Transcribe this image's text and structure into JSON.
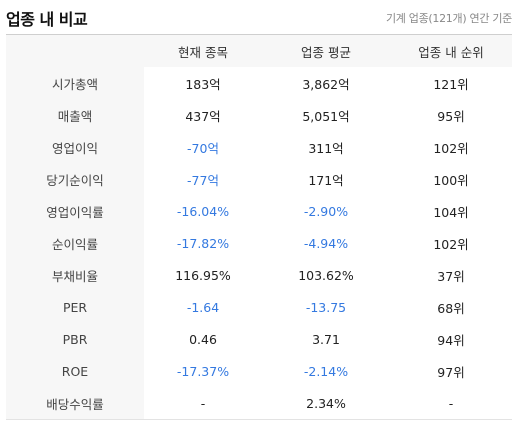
{
  "header": {
    "title": "업종 내 비교",
    "subtitle": "기계 업종(121개) 연간 기준"
  },
  "table": {
    "columns": [
      "",
      "현재 종목",
      "업종 평균",
      "업종 내 순위"
    ],
    "rows": [
      {
        "label": "시가총액",
        "current": "183억",
        "average": "3,862억",
        "rank": "121위",
        "current_neg": false,
        "average_neg": false
      },
      {
        "label": "매출액",
        "current": "437억",
        "average": "5,051억",
        "rank": "95위",
        "current_neg": false,
        "average_neg": false
      },
      {
        "label": "영업이익",
        "current": "-70억",
        "average": "311억",
        "rank": "102위",
        "current_neg": true,
        "average_neg": false
      },
      {
        "label": "당기순이익",
        "current": "-77억",
        "average": "171억",
        "rank": "100위",
        "current_neg": true,
        "average_neg": false
      },
      {
        "label": "영업이익률",
        "current": "-16.04%",
        "average": "-2.90%",
        "rank": "104위",
        "current_neg": true,
        "average_neg": true
      },
      {
        "label": "순이익률",
        "current": "-17.82%",
        "average": "-4.94%",
        "rank": "102위",
        "current_neg": true,
        "average_neg": true
      },
      {
        "label": "부채비율",
        "current": "116.95%",
        "average": "103.62%",
        "rank": "37위",
        "current_neg": false,
        "average_neg": false
      },
      {
        "label": "PER",
        "current": "-1.64",
        "average": "-13.75",
        "rank": "68위",
        "current_neg": true,
        "average_neg": true
      },
      {
        "label": "PBR",
        "current": "0.46",
        "average": "3.71",
        "rank": "94위",
        "current_neg": false,
        "average_neg": false
      },
      {
        "label": "ROE",
        "current": "-17.37%",
        "average": "-2.14%",
        "rank": "97위",
        "current_neg": true,
        "average_neg": true
      },
      {
        "label": "배당수익률",
        "current": "-",
        "average": "2.34%",
        "rank": "-",
        "current_neg": false,
        "average_neg": false
      }
    ]
  },
  "colors": {
    "negative": "#3479e0",
    "header_bg": "#f7f7f7"
  }
}
